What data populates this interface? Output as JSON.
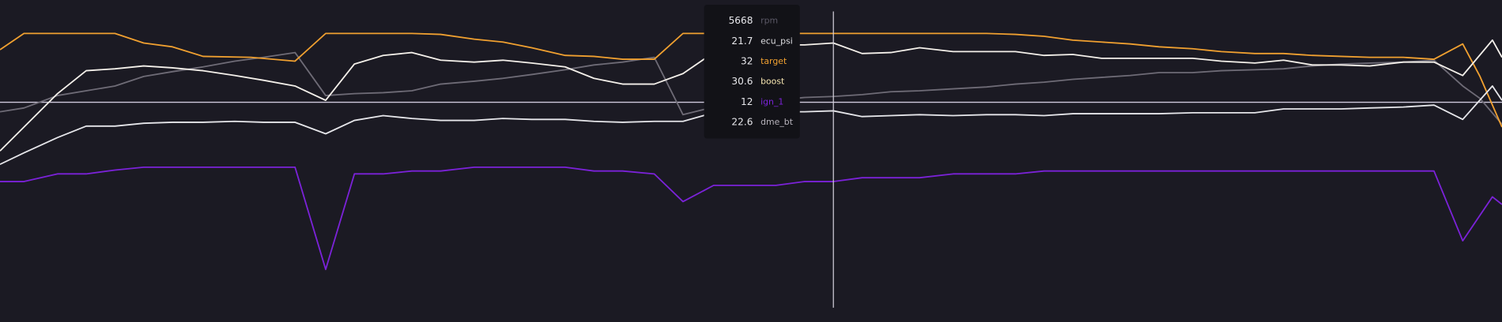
{
  "tooltip": {
    "rows": [
      {
        "value": 5668,
        "label": "rpm",
        "color": "#5b5866"
      },
      {
        "value": 21.7,
        "label": "ecu_psi",
        "color": "#dcdce0"
      },
      {
        "value": 32,
        "label": "target",
        "color": "#f0a030"
      },
      {
        "value": 30.6,
        "label": "boost",
        "color": "#f5e4b0"
      },
      {
        "value": 12,
        "label": "ign_1",
        "color": "#7b22d8"
      },
      {
        "value": 22.6,
        "label": "dme_bt",
        "color": "#b8b4bc"
      }
    ]
  }
}
